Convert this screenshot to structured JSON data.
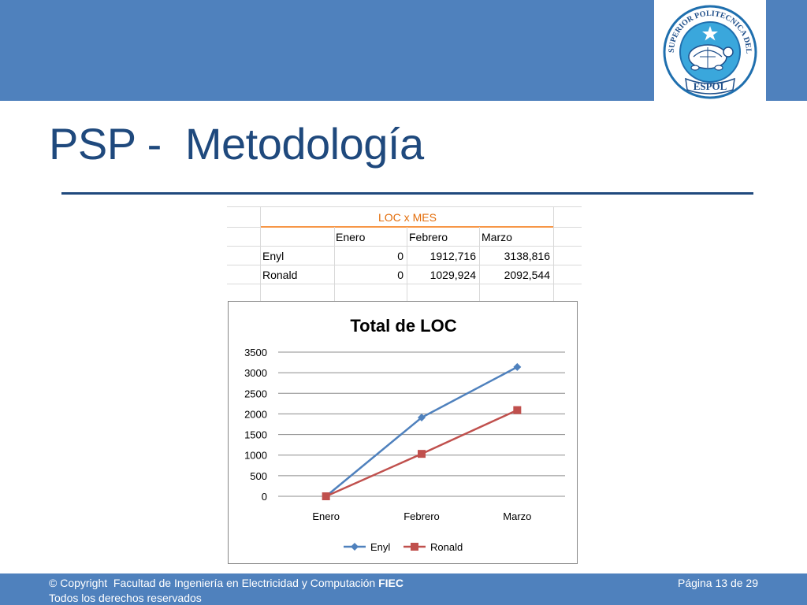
{
  "slide": {
    "title": "PSP -  Metodología",
    "logo": {
      "ring_text": "ESCUELA SUPERIOR POLITECNICA DEL LITORAL",
      "banner_text": "ESPOL",
      "icon": "turtle-emblem-icon"
    }
  },
  "table": {
    "title": "LOC x MES",
    "headers": [
      "",
      "Enero",
      "Febrero",
      "Marzo"
    ],
    "rows": [
      {
        "name": "Enyl",
        "values": [
          "0",
          "1912,716",
          "3138,816"
        ]
      },
      {
        "name": "Ronald",
        "values": [
          "0",
          "1029,924",
          "2092,544"
        ]
      }
    ]
  },
  "chart_data": {
    "type": "line",
    "title": "Total de LOC",
    "categories": [
      "Enero",
      "Febrero",
      "Marzo"
    ],
    "series": [
      {
        "name": "Enyl",
        "values": [
          0,
          1912.716,
          3138.816
        ],
        "color": "#4f81bd",
        "marker": "diamond"
      },
      {
        "name": "Ronald",
        "values": [
          0,
          1029.924,
          2092.544
        ],
        "color": "#c0504d",
        "marker": "square"
      }
    ],
    "y_ticks": [
      "0",
      "500",
      "1000",
      "1500",
      "2000",
      "2500",
      "3000",
      "3500"
    ],
    "ylim": [
      0,
      3500
    ],
    "grid": true,
    "legend_position": "bottom"
  },
  "footer": {
    "copyright_prefix": "© Copyright  Facultad de Ingeniería en Electricidad y Computación ",
    "copyright_bold": "FIEC",
    "rights": "Todos los derechos reservados",
    "page": "Página 13 de 29"
  },
  "colors": {
    "brand_blue": "#4f81bd",
    "title_blue": "#1f497d",
    "table_title_orange": "#e36c09"
  }
}
